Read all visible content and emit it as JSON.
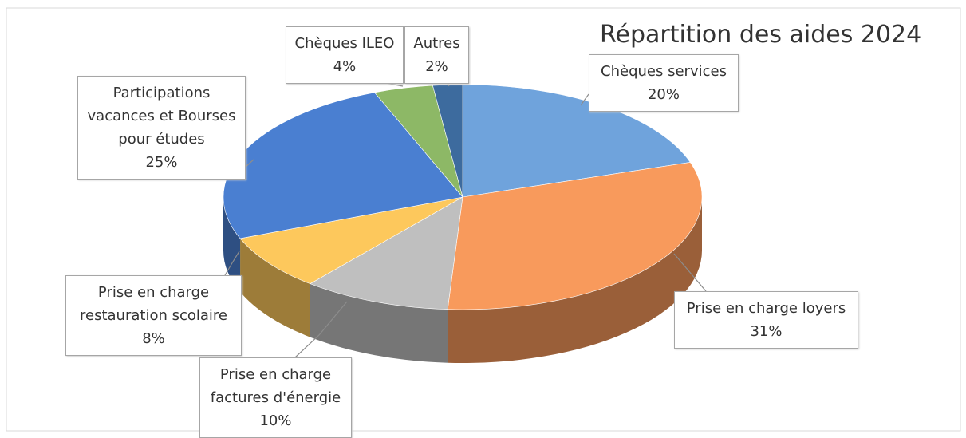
{
  "chart_data": {
    "type": "pie3d",
    "title": "Répartition des aides 2024",
    "categories": [
      "Chèques services",
      "Prise en charge loyers",
      "Prise en charge factures d'énergie",
      "Prise en charge restauration scolaire",
      "Participations vacances et Bourses pour études",
      "Chèques ILEO",
      "Autres"
    ],
    "values": [
      20,
      31,
      10,
      8,
      25,
      4,
      2
    ],
    "value_labels": [
      "20%",
      "31%",
      "10%",
      "8%",
      "25%",
      "4%",
      "2%"
    ],
    "colors": [
      "#6fa3dc",
      "#f89a5c",
      "#bfbfbf",
      "#fdc85c",
      "#4a7fd1",
      "#8db866",
      "#3d6b9e"
    ]
  }
}
